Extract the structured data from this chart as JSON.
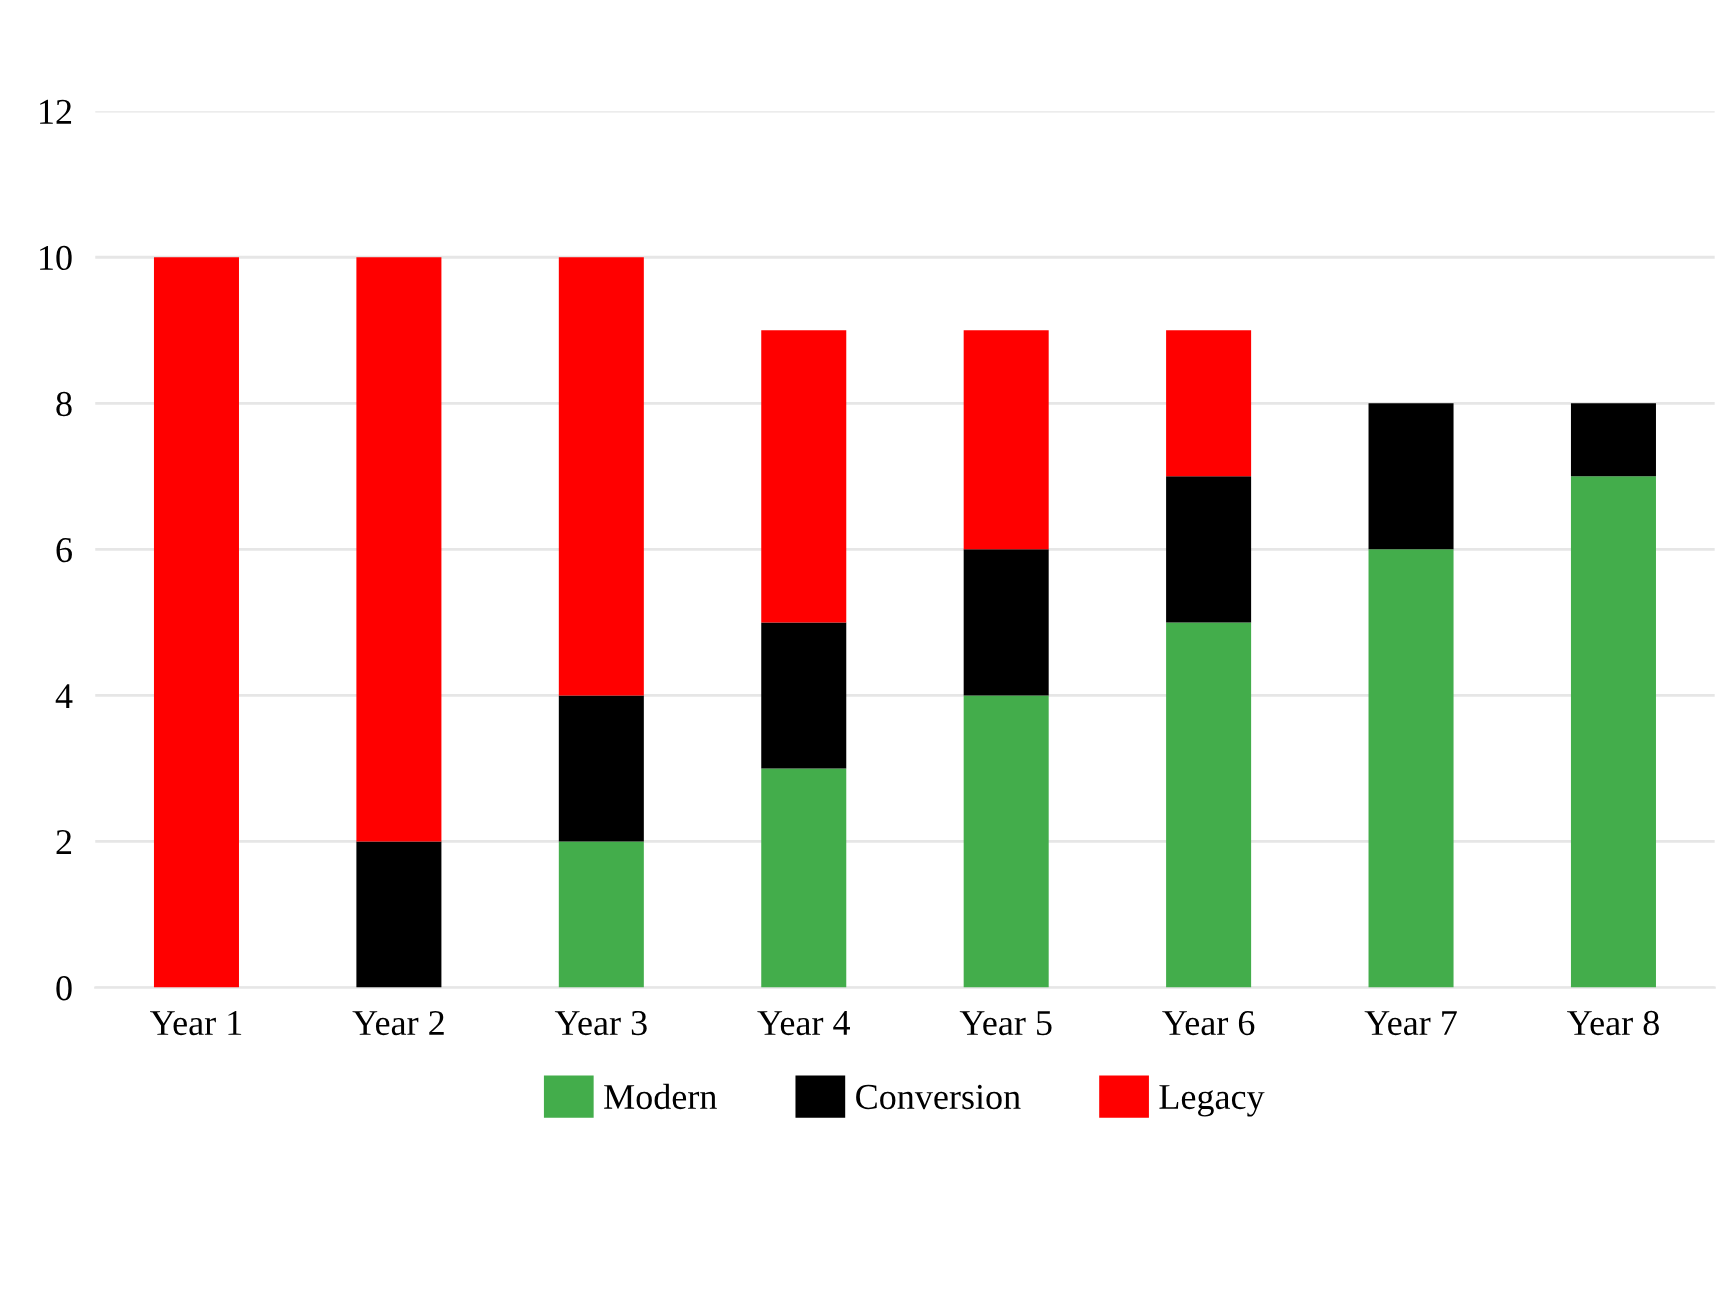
{
  "chart_data": {
    "type": "bar",
    "stacked": true,
    "categories": [
      "Year 1",
      "Year 2",
      "Year 3",
      "Year 4",
      "Year 5",
      "Year 6",
      "Year 7",
      "Year 8"
    ],
    "series": [
      {
        "name": "Modern",
        "color": "#43ad4b",
        "values": [
          0,
          0,
          2,
          3,
          4,
          5,
          6,
          7
        ]
      },
      {
        "name": "Conversion",
        "color": "#000000",
        "values": [
          0,
          2,
          2,
          2,
          2,
          2,
          2,
          1
        ]
      },
      {
        "name": "Legacy",
        "color": "#ff0000",
        "values": [
          10,
          8,
          6,
          4,
          3,
          2,
          0,
          0
        ]
      }
    ],
    "ylim": [
      0,
      12
    ],
    "yticks": [
      0,
      2,
      4,
      6,
      8,
      10,
      12
    ],
    "grid": "y",
    "legend": "bottom"
  }
}
